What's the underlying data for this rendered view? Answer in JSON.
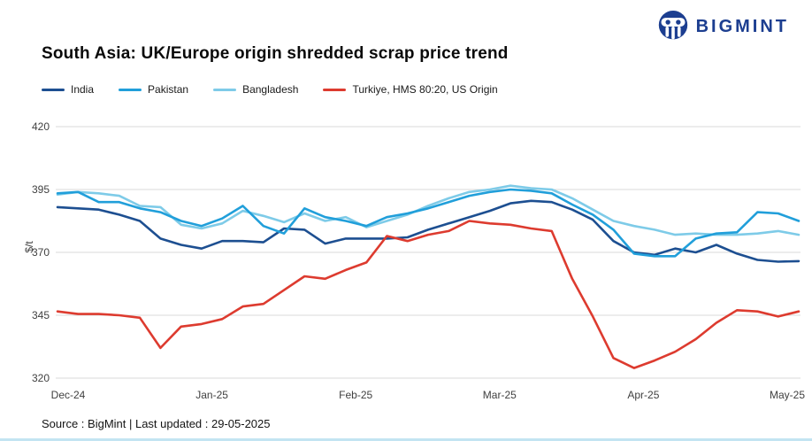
{
  "branding": {
    "name": "BIGMINT"
  },
  "header": {
    "title": "South Asia: UK/Europe origin shredded scrap price trend"
  },
  "footer": {
    "source": "Source : BigMint | Last updated : 29-05-2025"
  },
  "chart_data": {
    "type": "line",
    "title": "South Asia: UK/Europe origin shredded scrap price trend",
    "xlabel": "",
    "ylabel": "$/t",
    "ylim": [
      320,
      420
    ],
    "yticks": [
      420,
      395,
      370,
      345,
      320
    ],
    "xticks": [
      "Dec-24",
      "Jan-25",
      "Feb-25",
      "Mar-25",
      "Apr-25",
      "May-25"
    ],
    "grid": "horizontal",
    "legend_position": "top",
    "x": [
      "01-Dec-24",
      "06-Dec-24",
      "11-Dec-24",
      "16-Dec-24",
      "21-Dec-24",
      "26-Dec-24",
      "31-Dec-24",
      "05-Jan-25",
      "10-Jan-25",
      "15-Jan-25",
      "20-Jan-25",
      "25-Jan-25",
      "30-Jan-25",
      "04-Feb-25",
      "09-Feb-25",
      "14-Feb-25",
      "19-Feb-25",
      "24-Feb-25",
      "01-Mar-25",
      "06-Mar-25",
      "11-Mar-25",
      "16-Mar-25",
      "21-Mar-25",
      "26-Mar-25",
      "31-Mar-25",
      "05-Apr-25",
      "10-Apr-25",
      "15-Apr-25",
      "20-Apr-25",
      "25-Apr-25",
      "30-Apr-25",
      "05-May-25",
      "10-May-25",
      "15-May-25",
      "20-May-25",
      "25-May-25",
      "29-May-25"
    ],
    "series": [
      {
        "name": "India",
        "color": "#1d4f91",
        "values": [
          388,
          387.5,
          387,
          385,
          382.5,
          375.5,
          373,
          371.5,
          374.5,
          374.5,
          374,
          379.5,
          379,
          373.5,
          375.5,
          375.5,
          375.5,
          376,
          379,
          381.5,
          384,
          386.5,
          389.5,
          390.5,
          390,
          387,
          383,
          374.5,
          370,
          369,
          371.5,
          370,
          373,
          369.5,
          367,
          366.3,
          366.5
        ]
      },
      {
        "name": "Pakistan",
        "color": "#219fda",
        "values": [
          393.5,
          394,
          390,
          390,
          387.5,
          386,
          382.5,
          380.5,
          383.5,
          388.5,
          380.5,
          377.5,
          387.5,
          384,
          382.5,
          380.5,
          384,
          385.5,
          387.5,
          390,
          392.5,
          394,
          395,
          394.5,
          393.5,
          389,
          385,
          379,
          369.5,
          368.5,
          368.5,
          375.5,
          377.5,
          378,
          386,
          385.5,
          382.5
        ]
      },
      {
        "name": "Bangladesh",
        "color": "#7ecbe8",
        "values": [
          393,
          394,
          393.5,
          392.5,
          388.5,
          388,
          381,
          379.5,
          381.5,
          386.5,
          384.5,
          382,
          385.5,
          382.5,
          384,
          380,
          382.5,
          385,
          388.5,
          391.5,
          394,
          395,
          396.5,
          395.5,
          395,
          391.5,
          387,
          382.5,
          380.5,
          379,
          377,
          377.5,
          377,
          377,
          377.5,
          378.5,
          377
        ]
      },
      {
        "name": "Turkiye, HMS 80:20, US Origin",
        "color": "#dd3b2f",
        "values": [
          346.5,
          345.5,
          345.5,
          345,
          344,
          332,
          340.5,
          341.5,
          343.5,
          348.5,
          349.5,
          355,
          360.5,
          359.5,
          363,
          366,
          376.5,
          374.5,
          377,
          378.5,
          382.5,
          381.5,
          381,
          379.5,
          378.5,
          359.5,
          344.5,
          328,
          324,
          327,
          330.5,
          335.5,
          342,
          347,
          346.5,
          344.5,
          346.5
        ]
      }
    ]
  }
}
